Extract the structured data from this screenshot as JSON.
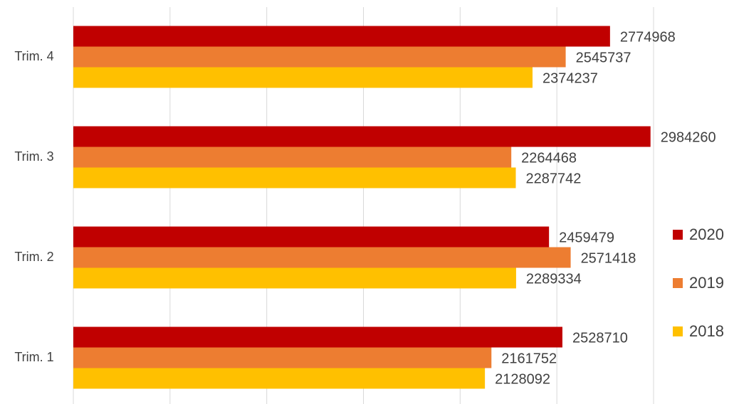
{
  "chart_data": {
    "type": "bar",
    "orientation": "horizontal",
    "categories": [
      "Trim. 1",
      "Trim. 2",
      "Trim. 3",
      "Trim. 4"
    ],
    "series": [
      {
        "name": "2020",
        "color": "#c00000",
        "values": [
          2528710,
          2459479,
          2984260,
          2774968
        ]
      },
      {
        "name": "2019",
        "color": "#ed7d31",
        "values": [
          2161752,
          2571418,
          2264468,
          2545737
        ]
      },
      {
        "name": "2018",
        "color": "#ffc000",
        "values": [
          2128092,
          2289334,
          2287742,
          2374237
        ]
      }
    ],
    "xlim": [
      0,
      3000000
    ],
    "xticks": [
      0,
      500000,
      1000000,
      1500000,
      2000000,
      2500000,
      3000000
    ],
    "grid": true,
    "legend": "right"
  }
}
